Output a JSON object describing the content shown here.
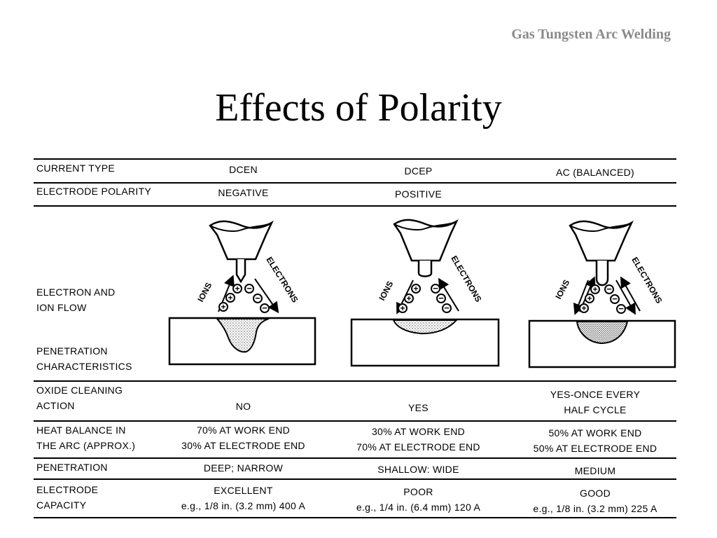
{
  "header": "Gas Tungsten Arc Welding",
  "title": "Effects of Polarity",
  "rows": {
    "current_type": {
      "label": "CURRENT TYPE",
      "dcen": "DCEN",
      "dcep": "DCEP",
      "ac": "AC (BALANCED)"
    },
    "electrode_polarity": {
      "label": "ELECTRODE POLARITY",
      "dcen": "NEGATIVE",
      "dcep": "POSITIVE",
      "ac": ""
    },
    "flow": {
      "label_1": "ELECTRON AND",
      "label_2": "ION FLOW"
    },
    "penetration_char": {
      "label_1": "PENETRATION",
      "label_2": "CHARACTERISTICS"
    },
    "oxide_cleaning": {
      "label_1": "OXIDE CLEANING",
      "label_2": "ACTION",
      "dcen": "NO",
      "dcep": "YES",
      "ac_1": "YES-ONCE EVERY",
      "ac_2": "HALF CYCLE"
    },
    "heat_balance": {
      "label_1": "HEAT BALANCE IN",
      "label_2": "THE ARC (APPROX.)",
      "dcen_1": "70% AT WORK END",
      "dcen_2": "30% AT ELECTRODE END",
      "dcep_1": "30% AT WORK END",
      "dcep_2": "70% AT ELECTRODE END",
      "ac_1": "50% AT WORK END",
      "ac_2": "50% AT ELECTRODE END"
    },
    "penetration": {
      "label": "PENETRATION",
      "dcen": "DEEP; NARROW",
      "dcep": "SHALLOW: WIDE",
      "ac": "MEDIUM"
    },
    "electrode_capacity": {
      "label_1": "ELECTRODE",
      "label_2": "CAPACITY",
      "dcen_1": "EXCELLENT",
      "dcen_2": "e.g., 1/8 in. (3.2 mm) 400 A",
      "dcep_1": "POOR",
      "dcep_2": "e.g., 1/4 in. (6.4 mm) 120 A",
      "ac_1": "GOOD",
      "ac_2": "e.g., 1/8 in. (3.2 mm) 225 A"
    }
  },
  "diagram_labels": {
    "ions": "IONS",
    "electrons": "ELECTRONS"
  }
}
